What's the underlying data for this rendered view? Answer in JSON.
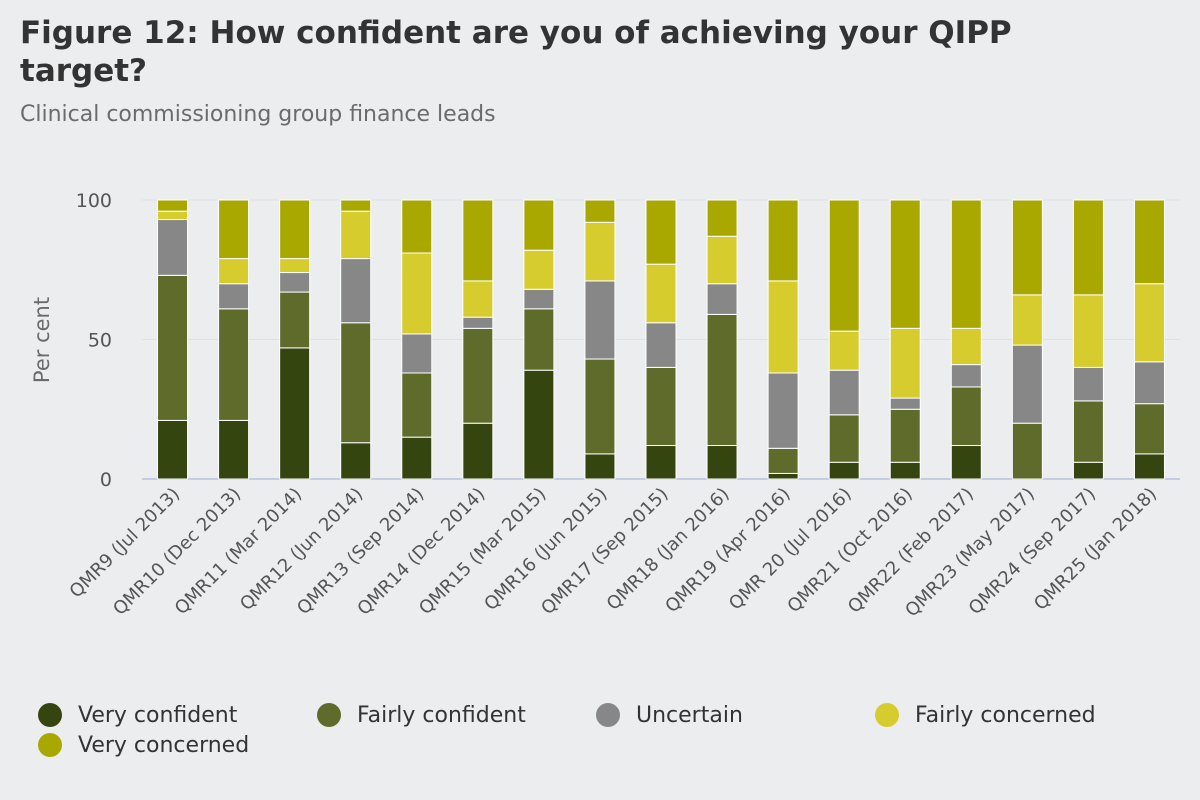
{
  "chart_data": {
    "type": "bar",
    "stacked": true,
    "title": "Figure 12: How confident are you of achieving your QIPP target?",
    "subtitle": "Clinical commissioning group finance leads",
    "xlabel": "",
    "ylabel": "Per cent",
    "ylim": [
      0,
      100
    ],
    "yticks": [
      0,
      50,
      100
    ],
    "grid": true,
    "legend_position": "bottom",
    "categories": [
      "QMR9 (Jul 2013)",
      "QMR10 (Dec 2013)",
      "QMR11 (Mar 2014)",
      "QMR12 (Jun 2014)",
      "QMR13 (Sep 2014)",
      "QMR14 (Dec 2014)",
      "QMR15 (Mar 2015)",
      "QMR16 (Jun 2015)",
      "QMR17 (Sep 2015)",
      "QMR18 (Jan 2016)",
      "QMR19 (Apr 2016)",
      "QMR 20 (Jul 2016)",
      "QMR21 (Oct 2016)",
      "QMR22 (Feb 2017)",
      "QMR23 (May 2017)",
      "QMR24 (Sep 2017)",
      "QMR25 (Jan 2018)"
    ],
    "series": [
      {
        "name": "Very confident",
        "color": "#354510",
        "values": [
          21,
          21,
          47,
          13,
          15,
          20,
          39,
          9,
          12,
          12,
          2,
          6,
          6,
          12,
          0,
          6,
          9
        ]
      },
      {
        "name": "Fairly confident",
        "color": "#5e6b2a",
        "values": [
          52,
          40,
          20,
          43,
          23,
          34,
          22,
          34,
          28,
          47,
          9,
          17,
          19,
          21,
          20,
          22,
          18
        ]
      },
      {
        "name": "Uncertain",
        "color": "#878787",
        "values": [
          20,
          9,
          7,
          23,
          14,
          4,
          7,
          28,
          16,
          11,
          27,
          16,
          4,
          8,
          28,
          12,
          15
        ]
      },
      {
        "name": "Fairly concerned",
        "color": "#d6cc2e",
        "values": [
          3,
          9,
          5,
          17,
          29,
          13,
          14,
          21,
          21,
          17,
          33,
          14,
          25,
          13,
          18,
          26,
          28
        ]
      },
      {
        "name": "Very concerned",
        "color": "#a9a800",
        "values": [
          4,
          21,
          21,
          4,
          19,
          29,
          18,
          8,
          23,
          13,
          29,
          47,
          46,
          46,
          34,
          34,
          30
        ]
      }
    ]
  }
}
